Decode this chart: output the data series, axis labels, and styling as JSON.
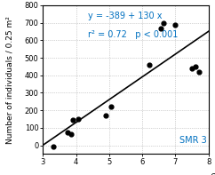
{
  "scatter_x": [
    3.3,
    3.75,
    3.85,
    3.9,
    4.05,
    4.9,
    5.05,
    6.2,
    6.55,
    6.65,
    7.0,
    7.5,
    7.6,
    7.7
  ],
  "scatter_y": [
    -10,
    75,
    65,
    145,
    150,
    170,
    220,
    460,
    670,
    700,
    690,
    440,
    450,
    420
  ],
  "line_x": [
    3.0,
    8.0
  ],
  "intercept": -389,
  "slope": 130,
  "xlabel": "e",
  "ylabel": "Number of individuals / 0.25 m²",
  "annotation_eq": "y = -389 + 130 x",
  "annotation_r2": "r² = 0.72   p < 0.001",
  "label_smr": "SMR 3",
  "xlim": [
    3,
    8
  ],
  "ylim": [
    -50,
    800
  ],
  "xticks": [
    3,
    4,
    5,
    6,
    7,
    8
  ],
  "yticks": [
    0,
    100,
    200,
    300,
    400,
    500,
    600,
    700,
    800
  ],
  "annotation_color": "#0070c0",
  "scatter_color": "#000000",
  "line_color": "#000000",
  "bg_color": "#ffffff",
  "grid_color": "#aaaaaa",
  "axis_fontsize": 6.5,
  "tick_fontsize": 6.0,
  "annotation_fontsize": 7.0,
  "smr_fontsize": 7.0
}
